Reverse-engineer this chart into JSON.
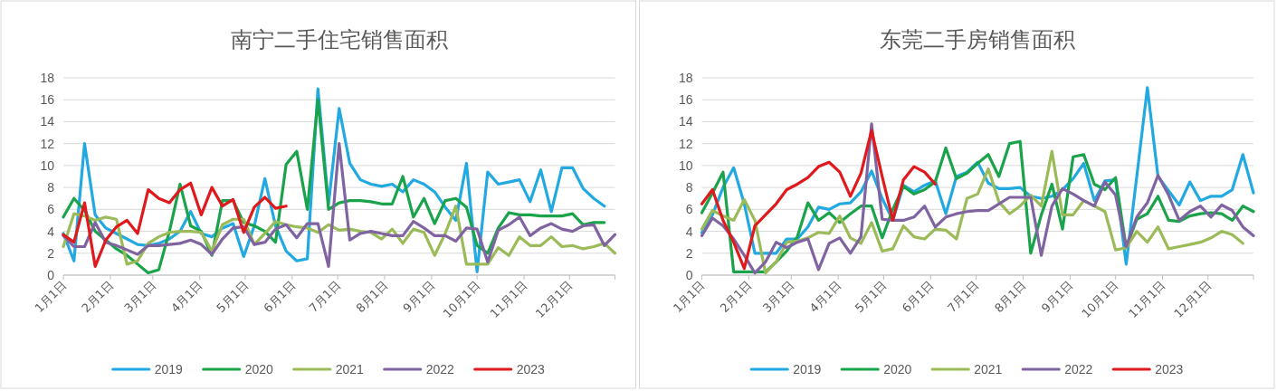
{
  "chart_data": [
    {
      "type": "line",
      "title": "南宁二手住宅销售面积",
      "legend": "bottom",
      "grid": "y",
      "line_style": "solid",
      "x": [
        "--01-01",
        "--01-08",
        "--01-15",
        "--01-22",
        "--01-29",
        "--02-05",
        "--02-12",
        "--02-19",
        "--02-26",
        "--03-05",
        "--03-12",
        "--03-19",
        "--03-26",
        "--04-02",
        "--04-09",
        "--04-16",
        "--04-23",
        "--04-30",
        "--05-07",
        "--05-14",
        "--05-21",
        "--05-28",
        "--06-04",
        "--06-11",
        "--06-18",
        "--06-25",
        "--07-02",
        "--07-09",
        "--07-16",
        "--07-23",
        "--07-30",
        "--08-06",
        "--08-13",
        "--08-20",
        "--08-27",
        "--09-03",
        "--09-10",
        "--09-17",
        "--09-24",
        "--10-01",
        "--10-08",
        "--10-15",
        "--10-22",
        "--10-29",
        "--11-05",
        "--11-12",
        "--11-19",
        "--11-26",
        "--12-03",
        "--12-10",
        "--12-17",
        "--12-24",
        "--12-31"
      ],
      "xlim": [
        "--01-01",
        "--12-31"
      ],
      "xticks": [
        {
          "value": "--01-01",
          "label": "1月1日"
        },
        {
          "value": "--02-01",
          "label": "2月1日"
        },
        {
          "value": "--03-01",
          "label": "3月1日"
        },
        {
          "value": "--04-01",
          "label": "4月1日"
        },
        {
          "value": "--05-01",
          "label": "5月1日"
        },
        {
          "value": "--06-01",
          "label": "6月1日"
        },
        {
          "value": "--07-01",
          "label": "7月1日"
        },
        {
          "value": "--08-01",
          "label": "8月1日"
        },
        {
          "value": "--09-01",
          "label": "9月1日"
        },
        {
          "value": "--10-01",
          "label": "10月1日"
        },
        {
          "value": "--11-01",
          "label": "11月1日"
        },
        {
          "value": "--12-01",
          "label": "12月1日"
        },
        {
          "value": "--12-31",
          "label": null
        }
      ],
      "ylim": [
        0,
        18
      ],
      "yticks": [
        0,
        2,
        4,
        6,
        8,
        10,
        12,
        14,
        16,
        18
      ],
      "series": [
        {
          "name": "2019",
          "color": "#22a9e1",
          "values": [
            3.8,
            1.3,
            12,
            5.5,
            4.3,
            3.8,
            3.3,
            2.8,
            2.7,
            2.9,
            3.3,
            4.0,
            5.8,
            3.8,
            3.5,
            4.3,
            4.7,
            1.7,
            4.5,
            8.8,
            4.5,
            2.2,
            1.3,
            1.5,
            17,
            6.5,
            15.2,
            10.2,
            8.7,
            8.3,
            8.1,
            8.3,
            7.6,
            8.7,
            8.3,
            7.6,
            6.2,
            5.0,
            10.2,
            0.3,
            9.4,
            8.3,
            8.5,
            8.7,
            6.7,
            9.6,
            5.8,
            9.8,
            9.8,
            7.9,
            7.0,
            6.3,
            null
          ]
        },
        {
          "name": "2020",
          "color": "#1aa34a",
          "values": [
            5.3,
            7.0,
            5.9,
            4.0,
            3.2,
            2.4,
            1.8,
            1.0,
            0.2,
            0.5,
            4.0,
            8.3,
            4.5,
            4.0,
            1.8,
            6.8,
            6.8,
            4.8,
            4.5,
            4.0,
            3.0,
            10.1,
            11.3,
            6.0,
            16.0,
            6.0,
            6.6,
            6.8,
            6.8,
            6.7,
            6.5,
            6.5,
            9.0,
            5.3,
            7.0,
            4.7,
            6.8,
            7.0,
            6.2,
            2.7,
            2.0,
            4.3,
            5.7,
            5.5,
            5.5,
            5.4,
            5.4,
            5.4,
            5.6,
            4.6,
            4.8,
            4.8,
            null
          ]
        },
        {
          "name": "2021",
          "color": "#9bbb59",
          "values": [
            2.6,
            5.6,
            5.4,
            5.0,
            5.3,
            5.1,
            1.0,
            1.3,
            2.9,
            3.5,
            3.9,
            4.0,
            4.0,
            3.9,
            2.2,
            4.6,
            5.1,
            5.1,
            2.8,
            3.8,
            4.9,
            4.6,
            4.4,
            4.3,
            3.9,
            4.6,
            4.1,
            4.2,
            4.0,
            3.9,
            3.3,
            4.2,
            2.9,
            4.2,
            3.9,
            1.8,
            3.8,
            6.3,
            1.0,
            1.0,
            1.0,
            2.5,
            1.8,
            3.5,
            2.7,
            2.7,
            3.5,
            2.6,
            2.7,
            2.4,
            2.6,
            2.9,
            2.0
          ]
        },
        {
          "name": "2022",
          "color": "#8064a2",
          "values": [
            3.6,
            2.6,
            2.6,
            4.8,
            3.0,
            2.7,
            2.3,
            1.9,
            2.7,
            2.7,
            2.8,
            2.9,
            3.2,
            2.8,
            1.9,
            3.3,
            4.3,
            4.4,
            2.8,
            3.0,
            4.2,
            4.6,
            3.4,
            4.7,
            4.7,
            0.8,
            12.0,
            3.2,
            3.8,
            4.0,
            3.8,
            3.6,
            3.6,
            4.9,
            4.3,
            3.6,
            3.6,
            3.1,
            4.3,
            4.2,
            1.2,
            4.1,
            4.6,
            5.3,
            3.6,
            4.3,
            4.7,
            4.2,
            4.0,
            4.5,
            4.6,
            2.7,
            3.7
          ]
        },
        {
          "name": "2023",
          "color": "#e0191c",
          "values": [
            3.7,
            3.0,
            6.6,
            0.8,
            3.2,
            4.4,
            5.0,
            3.8,
            7.8,
            7.0,
            6.6,
            7.8,
            8.4,
            5.5,
            8.0,
            6.3,
            6.9,
            3.9,
            6.2,
            7.1,
            6.1,
            6.3,
            null,
            null,
            null,
            null,
            null,
            null,
            null,
            null,
            null,
            null,
            null,
            null,
            null,
            null,
            null,
            null,
            null,
            null,
            null,
            null,
            null,
            null,
            null,
            null,
            null,
            null,
            null,
            null,
            null,
            null,
            null
          ]
        }
      ]
    },
    {
      "type": "line",
      "title": "东莞二手房销售面积",
      "legend": "bottom",
      "grid": "y",
      "line_style": "solid",
      "x": [
        "--01-01",
        "--01-08",
        "--01-15",
        "--01-22",
        "--01-29",
        "--02-05",
        "--02-12",
        "--02-19",
        "--02-26",
        "--03-05",
        "--03-12",
        "--03-19",
        "--03-26",
        "--04-02",
        "--04-09",
        "--04-16",
        "--04-23",
        "--04-30",
        "--05-07",
        "--05-14",
        "--05-21",
        "--05-28",
        "--06-04",
        "--06-11",
        "--06-18",
        "--06-25",
        "--07-02",
        "--07-09",
        "--07-16",
        "--07-23",
        "--07-30",
        "--08-06",
        "--08-13",
        "--08-20",
        "--08-27",
        "--09-03",
        "--09-10",
        "--09-17",
        "--09-24",
        "--10-01",
        "--10-08",
        "--10-15",
        "--10-22",
        "--10-29",
        "--11-05",
        "--11-12",
        "--11-19",
        "--11-26",
        "--12-03",
        "--12-10",
        "--12-17",
        "--12-24",
        "--12-31"
      ],
      "xlim": [
        "--01-01",
        "--12-31"
      ],
      "xticks": [
        {
          "value": "--01-01",
          "label": "1月1日"
        },
        {
          "value": "--02-01",
          "label": "2月1日"
        },
        {
          "value": "--03-01",
          "label": "3月1日"
        },
        {
          "value": "--04-01",
          "label": "4月1日"
        },
        {
          "value": "--05-01",
          "label": "5月1日"
        },
        {
          "value": "--06-01",
          "label": "6月1日"
        },
        {
          "value": "--07-01",
          "label": "7月1日"
        },
        {
          "value": "--08-01",
          "label": "8月1日"
        },
        {
          "value": "--09-01",
          "label": "9月1日"
        },
        {
          "value": "--10-01",
          "label": "10月1日"
        },
        {
          "value": "--11-01",
          "label": "11月1日"
        },
        {
          "value": "--12-01",
          "label": "12月1日"
        },
        {
          "value": "--12-31",
          "label": null
        }
      ],
      "ylim": [
        0,
        18
      ],
      "yticks": [
        0,
        2,
        4,
        6,
        8,
        10,
        12,
        14,
        16,
        18
      ],
      "series": [
        {
          "name": "2019",
          "color": "#22a9e1",
          "values": [
            3.9,
            5.5,
            8.0,
            9.8,
            6.5,
            2.0,
            2.0,
            2.0,
            3.3,
            3.3,
            4.4,
            6.2,
            6.0,
            6.5,
            6.6,
            7.6,
            9.5,
            7.0,
            5.0,
            8.2,
            7.6,
            8.2,
            8.6,
            5.6,
            9.0,
            9.4,
            10.3,
            8.4,
            7.9,
            7.9,
            8.0,
            7.2,
            7.0,
            7.2,
            7.8,
            8.8,
            10.2,
            6.8,
            8.6,
            8.7,
            1.0,
            9.0,
            17.1,
            9.0,
            7.7,
            6.4,
            8.5,
            6.8,
            7.2,
            7.2,
            7.8,
            11.0,
            7.5
          ]
        },
        {
          "name": "2020",
          "color": "#1aa34a",
          "values": [
            5.7,
            7.5,
            9.4,
            0.3,
            0.3,
            0.3,
            0.3,
            1.2,
            2.2,
            3.5,
            6.6,
            5.0,
            5.7,
            4.8,
            5.6,
            6.3,
            6.3,
            3.4,
            6.0,
            8.1,
            7.4,
            7.8,
            8.5,
            11.6,
            8.8,
            9.3,
            10.2,
            11.0,
            9.0,
            12.0,
            12.2,
            2.0,
            5.5,
            8.3,
            4.2,
            10.8,
            11.0,
            8.3,
            7.8,
            8.9,
            2.5,
            5.1,
            5.6,
            7.2,
            5.0,
            4.9,
            5.4,
            5.6,
            5.7,
            5.6,
            5.0,
            6.3,
            5.8
          ]
        },
        {
          "name": "2021",
          "color": "#9bbb59",
          "values": [
            4.2,
            5.9,
            5.4,
            5.0,
            6.9,
            5.0,
            0.2,
            1.2,
            3.0,
            3.1,
            3.4,
            3.9,
            3.8,
            5.4,
            3.4,
            2.9,
            4.8,
            2.2,
            2.4,
            4.5,
            3.5,
            3.3,
            4.2,
            4.1,
            3.3,
            7.0,
            7.4,
            9.7,
            6.7,
            5.6,
            6.3,
            7.3,
            6.3,
            11.3,
            5.5,
            5.5,
            6.8,
            6.3,
            5.8,
            2.3,
            2.5,
            4.0,
            3.0,
            4.4,
            2.4,
            2.6,
            2.8,
            3.0,
            3.4,
            4.0,
            3.7,
            2.9,
            null
          ]
        },
        {
          "name": "2022",
          "color": "#8064a2",
          "values": [
            3.6,
            5.2,
            4.5,
            3.3,
            1.8,
            0.2,
            1.2,
            3.0,
            2.5,
            3.0,
            3.3,
            0.5,
            2.9,
            3.4,
            2.0,
            3.5,
            13.8,
            5.1,
            5.0,
            5.0,
            5.3,
            6.3,
            4.4,
            5.3,
            5.6,
            5.8,
            5.9,
            5.9,
            6.5,
            7.1,
            7.1,
            7.1,
            1.8,
            6.3,
            7.9,
            7.4,
            6.8,
            6.3,
            8.5,
            7.3,
            2.6,
            5.3,
            6.6,
            9.1,
            7.3,
            5.0,
            5.8,
            6.3,
            5.3,
            6.4,
            5.9,
            4.4,
            3.6
          ]
        },
        {
          "name": "2023",
          "color": "#e0191c",
          "values": [
            6.5,
            7.8,
            5.0,
            3.0,
            0.6,
            4.5,
            5.5,
            6.5,
            7.8,
            8.3,
            8.9,
            9.9,
            10.3,
            9.4,
            7.2,
            9.3,
            13.2,
            9.0,
            5.0,
            8.7,
            9.9,
            9.4,
            8.3,
            null,
            null,
            null,
            null,
            null,
            null,
            null,
            null,
            null,
            null,
            null,
            null,
            null,
            null,
            null,
            null,
            null,
            null,
            null,
            null,
            null,
            null,
            null,
            null,
            null,
            null,
            null,
            null,
            null,
            null
          ]
        }
      ]
    }
  ]
}
